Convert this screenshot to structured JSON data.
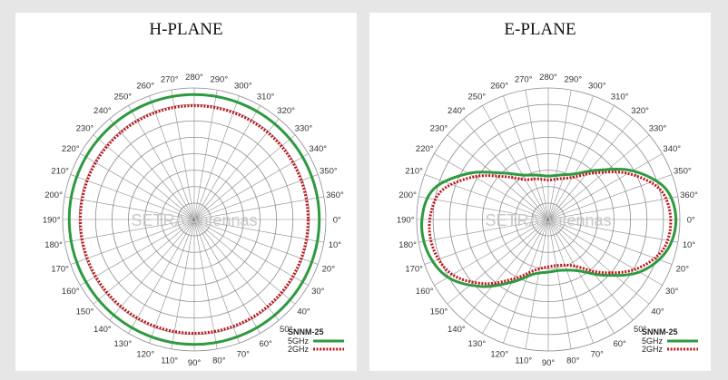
{
  "chart_data": [
    {
      "type": "polar",
      "title": "H-PLANE",
      "angle_labels": [
        "280°",
        "290°",
        "300°",
        "310°",
        "320°",
        "330°",
        "340°",
        "350°",
        "360°",
        "0°",
        "10°",
        "20°",
        "30°",
        "40°",
        "50°",
        "60°",
        "70°",
        "80°",
        "90°",
        "110°",
        "120°",
        "130°",
        "140°",
        "150°",
        "160°",
        "170°",
        "180°",
        "190°",
        "200°",
        "210°",
        "220°",
        "230°",
        "240°",
        "250°",
        "260°",
        "270°"
      ],
      "watermark": "SETRA Antennas",
      "legend": {
        "title": "SNNM-25"
      },
      "series": [
        {
          "name": "5GHz",
          "color": "#2e9a40",
          "style": "solid",
          "radius": 0.95
        },
        {
          "name": "2GHz",
          "color": "#c0141c",
          "style": "dotted",
          "radius": 0.865
        }
      ]
    },
    {
      "type": "polar",
      "title": "E-PLANE",
      "angle_labels": [
        "280°",
        "290°",
        "300°",
        "310°",
        "320°",
        "330°",
        "340°",
        "350°",
        "360°",
        "0°",
        "10°",
        "20°",
        "30°",
        "40°",
        "50°",
        "60°",
        "70°",
        "80°",
        "90°",
        "110°",
        "120°",
        "130°",
        "140°",
        "150°",
        "160°",
        "170°",
        "180°",
        "190°",
        "200°",
        "210°",
        "220°",
        "230°",
        "240°",
        "250°",
        "260°",
        "270°"
      ],
      "watermark": "SETRA Antennas",
      "legend": {
        "title": "SNNM-25"
      },
      "series": [
        {
          "name": "5GHz",
          "color": "#2e9a40",
          "style": "solid",
          "points": [
            [
              0,
              0.97
            ],
            [
              15,
              0.93
            ],
            [
              30,
              0.8
            ],
            [
              45,
              0.6
            ],
            [
              60,
              0.45
            ],
            [
              75,
              0.4
            ],
            [
              90,
              0.4
            ],
            [
              105,
              0.43
            ],
            [
              120,
              0.55
            ],
            [
              135,
              0.72
            ],
            [
              150,
              0.88
            ],
            [
              165,
              0.95
            ],
            [
              180,
              0.96
            ],
            [
              195,
              0.9
            ],
            [
              210,
              0.7
            ],
            [
              225,
              0.5
            ],
            [
              240,
              0.39
            ],
            [
              255,
              0.35
            ],
            [
              270,
              0.33
            ],
            [
              285,
              0.35
            ],
            [
              300,
              0.4
            ],
            [
              315,
              0.53
            ],
            [
              330,
              0.74
            ],
            [
              345,
              0.92
            ]
          ]
        },
        {
          "name": "2GHz",
          "color": "#c0141c",
          "style": "dotted",
          "points": [
            [
              0,
              0.93
            ],
            [
              15,
              0.9
            ],
            [
              30,
              0.76
            ],
            [
              45,
              0.57
            ],
            [
              60,
              0.41
            ],
            [
              75,
              0.36
            ],
            [
              90,
              0.36
            ],
            [
              105,
              0.4
            ],
            [
              120,
              0.52
            ],
            [
              135,
              0.69
            ],
            [
              150,
              0.84
            ],
            [
              165,
              0.9
            ],
            [
              180,
              0.9
            ],
            [
              195,
              0.84
            ],
            [
              210,
              0.65
            ],
            [
              225,
              0.46
            ],
            [
              240,
              0.35
            ],
            [
              255,
              0.32
            ],
            [
              270,
              0.3
            ],
            [
              285,
              0.32
            ],
            [
              300,
              0.37
            ],
            [
              315,
              0.5
            ],
            [
              330,
              0.7
            ],
            [
              345,
              0.88
            ]
          ]
        }
      ]
    }
  ]
}
